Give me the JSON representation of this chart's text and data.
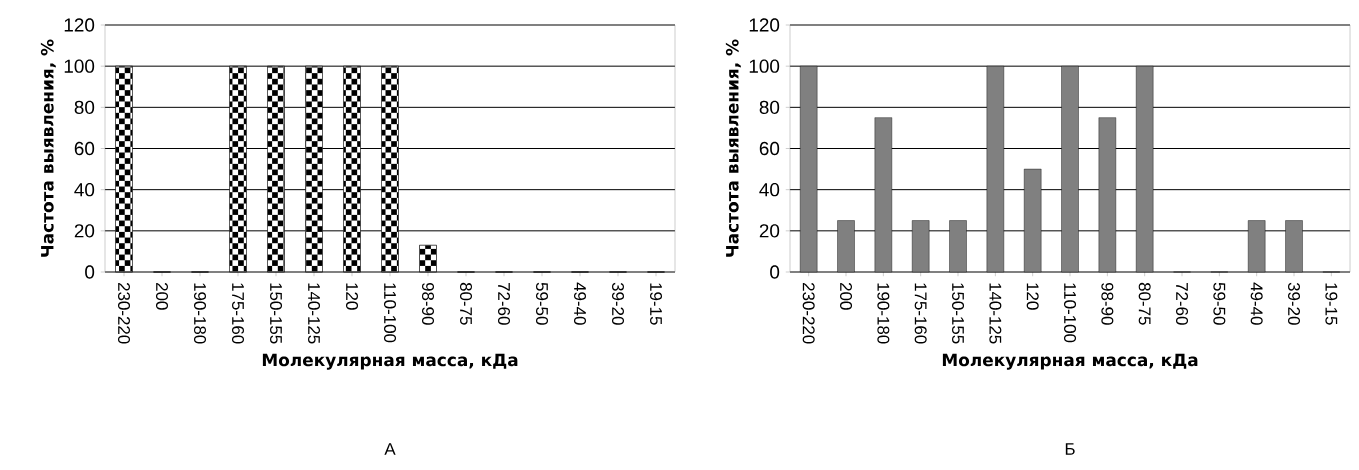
{
  "chart_data": [
    {
      "type": "bar",
      "ylabel": "Частота выявления, %",
      "xlabel": "Молекулярная масса, кДа",
      "categories": [
        "230-220",
        "200",
        "190-180",
        "175-160",
        "150-155",
        "140-125",
        "120",
        "110-100",
        "98-90",
        "80-75",
        "72-60",
        "59-50",
        "49-40",
        "39-20",
        "19-15"
      ],
      "values": [
        100,
        0,
        0,
        100,
        100,
        100,
        100,
        100,
        13,
        0,
        0,
        0,
        0,
        0,
        0
      ],
      "color": "#000000",
      "ylim": [
        0,
        120
      ],
      "yticks": [
        0,
        20,
        40,
        60,
        80,
        100,
        120
      ],
      "grid": "y",
      "annotations": [
        "А"
      ]
    },
    {
      "type": "bar",
      "ylabel": "Частота выявления, %",
      "xlabel": "Молекулярная масса, кДа",
      "categories": [
        "230-220",
        "200",
        "190-180",
        "175-160",
        "150-155",
        "140-125",
        "120",
        "110-100",
        "98-90",
        "80-75",
        "72-60",
        "59-50",
        "49-40",
        "39-20",
        "19-15"
      ],
      "values": [
        100,
        25,
        75,
        25,
        25,
        100,
        50,
        100,
        75,
        100,
        0,
        0,
        25,
        25,
        0
      ],
      "color": "#808080",
      "ylim": [
        0,
        120
      ],
      "yticks": [
        0,
        20,
        40,
        60,
        80,
        100,
        120
      ],
      "grid": "y",
      "annotations": [
        "Б"
      ]
    }
  ]
}
